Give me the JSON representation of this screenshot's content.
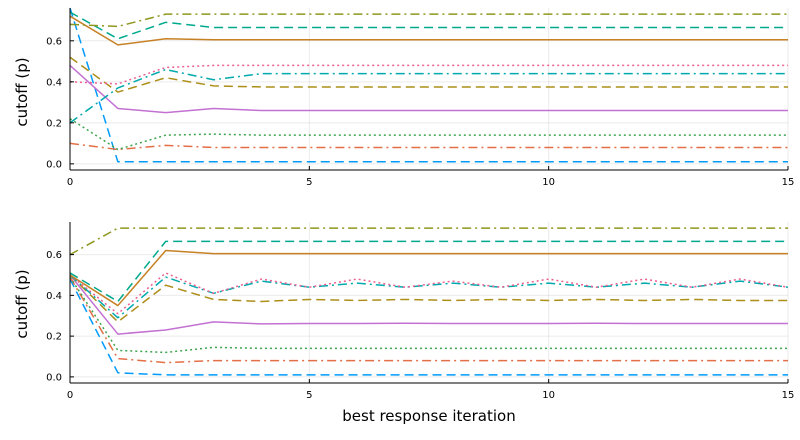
{
  "chart_data": [
    {
      "type": "line",
      "xlabel": "",
      "ylabel": "cutoff (p)",
      "xlim": [
        0,
        15
      ],
      "ylim": [
        -0.03,
        0.76
      ],
      "xticks": [
        0,
        5,
        10,
        15
      ],
      "yticks": [
        0.0,
        0.2,
        0.4,
        0.6
      ],
      "ytick_labels": [
        "0.0",
        "0.2",
        "0.4",
        "0.6"
      ],
      "grid": true,
      "legend": "none",
      "series": [
        {
          "color": "#009AFA",
          "dash": "dash",
          "x": [
            0,
            1,
            2,
            3,
            4,
            5,
            6,
            7,
            8,
            9,
            10,
            11,
            12,
            13,
            14,
            15
          ],
          "values": [
            0.76,
            0.01,
            0.01,
            0.01,
            0.01,
            0.01,
            0.01,
            0.01,
            0.01,
            0.01,
            0.01,
            0.01,
            0.01,
            0.01,
            0.01,
            0.01
          ]
        },
        {
          "color": "#E36F47",
          "dash": "dashdot",
          "x": [
            0,
            1,
            2,
            3,
            4,
            5,
            6,
            7,
            8,
            9,
            10,
            11,
            12,
            13,
            14,
            15
          ],
          "values": [
            0.1,
            0.07,
            0.09,
            0.08,
            0.08,
            0.08,
            0.08,
            0.08,
            0.08,
            0.08,
            0.08,
            0.08,
            0.08,
            0.08,
            0.08,
            0.08
          ]
        },
        {
          "color": "#3EA44E",
          "dash": "dot",
          "x": [
            0,
            1,
            2,
            3,
            4,
            5,
            6,
            7,
            8,
            9,
            10,
            11,
            12,
            13,
            14,
            15
          ],
          "values": [
            0.22,
            0.07,
            0.14,
            0.145,
            0.14,
            0.14,
            0.14,
            0.14,
            0.14,
            0.14,
            0.14,
            0.14,
            0.14,
            0.14,
            0.14,
            0.14
          ]
        },
        {
          "color": "#C371D2",
          "dash": "solid",
          "x": [
            0,
            1,
            2,
            3,
            4,
            5,
            6,
            7,
            8,
            9,
            10,
            11,
            12,
            13,
            14,
            15
          ],
          "values": [
            0.48,
            0.27,
            0.25,
            0.27,
            0.26,
            0.26,
            0.26,
            0.26,
            0.26,
            0.26,
            0.26,
            0.26,
            0.26,
            0.26,
            0.26,
            0.26
          ]
        },
        {
          "color": "#AC8E18",
          "dash": "dash",
          "x": [
            0,
            1,
            2,
            3,
            4,
            5,
            6,
            7,
            8,
            9,
            10,
            11,
            12,
            13,
            14,
            15
          ],
          "values": [
            0.52,
            0.35,
            0.42,
            0.38,
            0.375,
            0.375,
            0.375,
            0.375,
            0.375,
            0.375,
            0.375,
            0.375,
            0.375,
            0.375,
            0.375,
            0.375
          ]
        },
        {
          "color": "#00A9AD",
          "dash": "dashdot",
          "x": [
            0,
            1,
            2,
            3,
            4,
            5,
            6,
            7,
            8,
            9,
            10,
            11,
            12,
            13,
            14,
            15
          ],
          "values": [
            0.2,
            0.37,
            0.46,
            0.41,
            0.44,
            0.44,
            0.44,
            0.44,
            0.44,
            0.44,
            0.44,
            0.44,
            0.44,
            0.44,
            0.44,
            0.44
          ]
        },
        {
          "color": "#ED5E93",
          "dash": "dot",
          "x": [
            0,
            1,
            2,
            3,
            4,
            5,
            6,
            7,
            8,
            9,
            10,
            11,
            12,
            13,
            14,
            15
          ],
          "values": [
            0.4,
            0.39,
            0.47,
            0.48,
            0.48,
            0.48,
            0.48,
            0.48,
            0.48,
            0.48,
            0.48,
            0.48,
            0.48,
            0.48,
            0.48,
            0.48
          ]
        },
        {
          "color": "#C68125",
          "dash": "solid",
          "x": [
            0,
            1,
            2,
            3,
            4,
            5,
            6,
            7,
            8,
            9,
            10,
            11,
            12,
            13,
            14,
            15
          ],
          "values": [
            0.72,
            0.58,
            0.61,
            0.605,
            0.605,
            0.605,
            0.605,
            0.605,
            0.605,
            0.605,
            0.605,
            0.605,
            0.605,
            0.605,
            0.605,
            0.605
          ]
        },
        {
          "color": "#00A98D",
          "dash": "dash",
          "x": [
            0,
            1,
            2,
            3,
            4,
            5,
            6,
            7,
            8,
            9,
            10,
            11,
            12,
            13,
            14,
            15
          ],
          "values": [
            0.74,
            0.61,
            0.69,
            0.665,
            0.665,
            0.665,
            0.665,
            0.665,
            0.665,
            0.665,
            0.665,
            0.665,
            0.665,
            0.665,
            0.665,
            0.665
          ]
        },
        {
          "color": "#8E971D",
          "dash": "dashdot",
          "x": [
            0,
            1,
            2,
            3,
            4,
            5,
            6,
            7,
            8,
            9,
            10,
            11,
            12,
            13,
            14,
            15
          ],
          "values": [
            0.68,
            0.67,
            0.73,
            0.73,
            0.73,
            0.73,
            0.73,
            0.73,
            0.73,
            0.73,
            0.73,
            0.73,
            0.73,
            0.73,
            0.73,
            0.73
          ]
        }
      ]
    },
    {
      "type": "line",
      "xlabel": "best response iteration",
      "ylabel": "cutoff (p)",
      "xlim": [
        0,
        15
      ],
      "ylim": [
        -0.03,
        0.76
      ],
      "xticks": [
        0,
        5,
        10,
        15
      ],
      "yticks": [
        0.0,
        0.2,
        0.4,
        0.6
      ],
      "ytick_labels": [
        "0.0",
        "0.2",
        "0.4",
        "0.6"
      ],
      "grid": true,
      "legend": "none",
      "series": [
        {
          "color": "#009AFA",
          "dash": "dash",
          "x": [
            0,
            1,
            2,
            3,
            4,
            5,
            6,
            7,
            8,
            9,
            10,
            11,
            12,
            13,
            14,
            15
          ],
          "values": [
            0.48,
            0.02,
            0.01,
            0.01,
            0.01,
            0.01,
            0.01,
            0.01,
            0.01,
            0.01,
            0.01,
            0.01,
            0.01,
            0.01,
            0.01,
            0.01
          ]
        },
        {
          "color": "#E36F47",
          "dash": "dashdot",
          "x": [
            0,
            1,
            2,
            3,
            4,
            5,
            6,
            7,
            8,
            9,
            10,
            11,
            12,
            13,
            14,
            15
          ],
          "values": [
            0.49,
            0.09,
            0.07,
            0.08,
            0.08,
            0.08,
            0.08,
            0.08,
            0.08,
            0.08,
            0.08,
            0.08,
            0.08,
            0.08,
            0.08,
            0.08
          ]
        },
        {
          "color": "#3EA44E",
          "dash": "dot",
          "x": [
            0,
            1,
            2,
            3,
            4,
            5,
            6,
            7,
            8,
            9,
            10,
            11,
            12,
            13,
            14,
            15
          ],
          "values": [
            0.49,
            0.13,
            0.12,
            0.145,
            0.14,
            0.14,
            0.14,
            0.14,
            0.14,
            0.14,
            0.14,
            0.14,
            0.14,
            0.14,
            0.14,
            0.14
          ]
        },
        {
          "color": "#C371D2",
          "dash": "solid",
          "x": [
            0,
            1,
            2,
            3,
            4,
            5,
            6,
            7,
            8,
            9,
            10,
            11,
            12,
            13,
            14,
            15
          ],
          "values": [
            0.5,
            0.21,
            0.23,
            0.27,
            0.26,
            0.262,
            0.262,
            0.263,
            0.262,
            0.262,
            0.262,
            0.263,
            0.262,
            0.262,
            0.262,
            0.262
          ]
        },
        {
          "color": "#AC8E18",
          "dash": "dash",
          "x": [
            0,
            1,
            2,
            3,
            4,
            5,
            6,
            7,
            8,
            9,
            10,
            11,
            12,
            13,
            14,
            15
          ],
          "values": [
            0.5,
            0.27,
            0.45,
            0.38,
            0.37,
            0.38,
            0.375,
            0.38,
            0.375,
            0.38,
            0.375,
            0.38,
            0.375,
            0.38,
            0.375,
            0.375
          ]
        },
        {
          "color": "#00A9AD",
          "dash": "dashdot",
          "x": [
            0,
            1,
            2,
            3,
            4,
            5,
            6,
            7,
            8,
            9,
            10,
            11,
            12,
            13,
            14,
            15
          ],
          "values": [
            0.5,
            0.29,
            0.49,
            0.41,
            0.47,
            0.44,
            0.46,
            0.44,
            0.46,
            0.44,
            0.46,
            0.44,
            0.46,
            0.44,
            0.47,
            0.44
          ]
        },
        {
          "color": "#ED5E93",
          "dash": "dot",
          "x": [
            0,
            1,
            2,
            3,
            4,
            5,
            6,
            7,
            8,
            9,
            10,
            11,
            12,
            13,
            14,
            15
          ],
          "values": [
            0.5,
            0.31,
            0.51,
            0.41,
            0.48,
            0.44,
            0.48,
            0.44,
            0.47,
            0.44,
            0.48,
            0.44,
            0.48,
            0.44,
            0.48,
            0.44
          ]
        },
        {
          "color": "#C68125",
          "dash": "solid",
          "x": [
            0,
            1,
            2,
            3,
            4,
            5,
            6,
            7,
            8,
            9,
            10,
            11,
            12,
            13,
            14,
            15
          ],
          "values": [
            0.5,
            0.35,
            0.62,
            0.605,
            0.605,
            0.605,
            0.605,
            0.605,
            0.605,
            0.605,
            0.605,
            0.605,
            0.605,
            0.605,
            0.605,
            0.605
          ]
        },
        {
          "color": "#00A98D",
          "dash": "dash",
          "x": [
            0,
            1,
            2,
            3,
            4,
            5,
            6,
            7,
            8,
            9,
            10,
            11,
            12,
            13,
            14,
            15
          ],
          "values": [
            0.51,
            0.37,
            0.665,
            0.665,
            0.665,
            0.665,
            0.665,
            0.665,
            0.665,
            0.665,
            0.665,
            0.665,
            0.665,
            0.665,
            0.665,
            0.665
          ]
        },
        {
          "color": "#8E971D",
          "dash": "dashdot",
          "x": [
            0,
            1,
            2,
            3,
            4,
            5,
            6,
            7,
            8,
            9,
            10,
            11,
            12,
            13,
            14,
            15
          ],
          "values": [
            0.6,
            0.73,
            0.73,
            0.73,
            0.73,
            0.73,
            0.73,
            0.73,
            0.73,
            0.73,
            0.73,
            0.73,
            0.73,
            0.73,
            0.73,
            0.73
          ]
        }
      ]
    }
  ]
}
